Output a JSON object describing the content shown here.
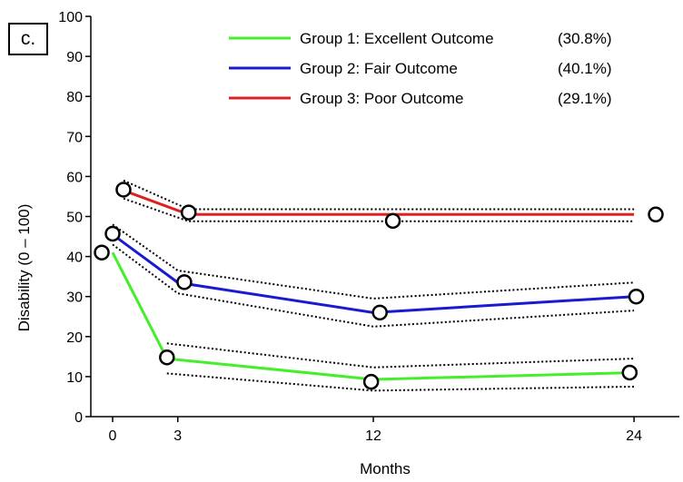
{
  "panel_label": "c.",
  "chart_data": {
    "type": "line",
    "title": "",
    "xlabel": "Months",
    "ylabel": "Disability (0 – 100)",
    "xlim": [
      -1,
      25
    ],
    "ylim": [
      0,
      100
    ],
    "x_ticks": [
      0,
      3,
      12,
      24
    ],
    "y_ticks": [
      0,
      10,
      20,
      30,
      40,
      50,
      60,
      70,
      80,
      90,
      100
    ],
    "grid": false,
    "legend_position": "top-right",
    "series": [
      {
        "name": "Group 1: Excellent Outcome",
        "percent": "(30.8%)",
        "color": "#44ee2a",
        "x": [
          0,
          2.5,
          12,
          24
        ],
        "y": [
          41,
          14.5,
          9.3,
          11
        ],
        "ci_upper": [
          null,
          18.3,
          12.3,
          14.5
        ],
        "ci_lower": [
          null,
          10.8,
          6.5,
          7.5
        ]
      },
      {
        "name": "Group 2: Fair Outcome",
        "percent": "(40.1%)",
        "color": "#1a1ad0",
        "x": [
          0,
          3,
          12,
          24
        ],
        "y": [
          45.5,
          33.5,
          26,
          30
        ],
        "ci_upper": [
          48,
          36.5,
          29.5,
          33.5
        ],
        "ci_lower": [
          43,
          30.8,
          22.5,
          26.5
        ]
      },
      {
        "name": "Group 3: Poor Outcome",
        "percent": "(29.1%)",
        "color": "#e02020",
        "x": [
          0.5,
          3.5,
          12,
          24
        ],
        "y": [
          56.5,
          50.5,
          50.5,
          50.5
        ],
        "ci_upper": [
          59,
          51.8,
          51.8,
          51.8
        ],
        "ci_lower": [
          54.5,
          48.8,
          48.8,
          48.8
        ]
      }
    ],
    "markers": [
      {
        "x": -0.5,
        "y": 41
      },
      {
        "x": 0,
        "y": 45.7
      },
      {
        "x": 0.5,
        "y": 56.7
      },
      {
        "x": 2.5,
        "y": 14.8
      },
      {
        "x": 3.5,
        "y": 51
      },
      {
        "x": 3.3,
        "y": 33.6
      },
      {
        "x": 11.9,
        "y": 8.7
      },
      {
        "x": 12.9,
        "y": 48.9
      },
      {
        "x": 12.3,
        "y": 26
      },
      {
        "x": 24.1,
        "y": 30
      },
      {
        "x": 23.8,
        "y": 11
      },
      {
        "x": 25,
        "y": 50.5
      }
    ]
  }
}
